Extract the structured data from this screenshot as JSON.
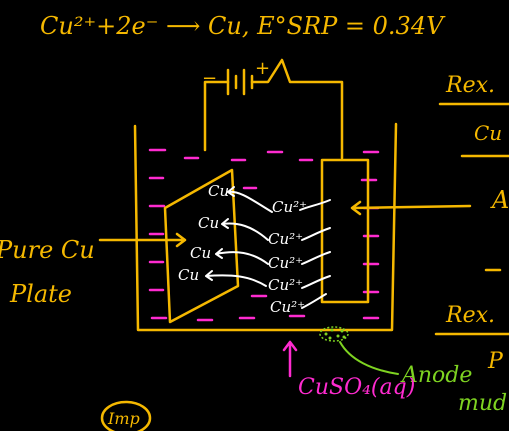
{
  "header": {
    "reaction": "Cu²⁺+2e⁻ ⟶ Cu,  E°SRP = 0.34V"
  },
  "labels": {
    "pure_cu": "Pure Cu",
    "plate": "Plate",
    "rex_top": "Rex. ",
    "cu_right": "Cu",
    "a_right": "A",
    "rex_bottom": "Rex. ",
    "p_right": "P",
    "anode": "Anode",
    "mud": "mud",
    "cuso4": "CuSO₄(aq)",
    "imp": "Imp"
  },
  "battery": {
    "minus": "−",
    "plus": "+"
  },
  "cathode_atoms": [
    "Cu",
    "Cu",
    "Cu",
    "Cu"
  ],
  "ions": [
    "Cu²⁺",
    "Cu²⁺",
    "Cu²⁺",
    "Cu²⁺",
    "Cu²⁺"
  ],
  "colors": {
    "ink": "#f5b800",
    "electrolyte": "#ff2bd0",
    "atoms": "#ffffff",
    "mud": "#7ed321",
    "background": "#000000"
  }
}
